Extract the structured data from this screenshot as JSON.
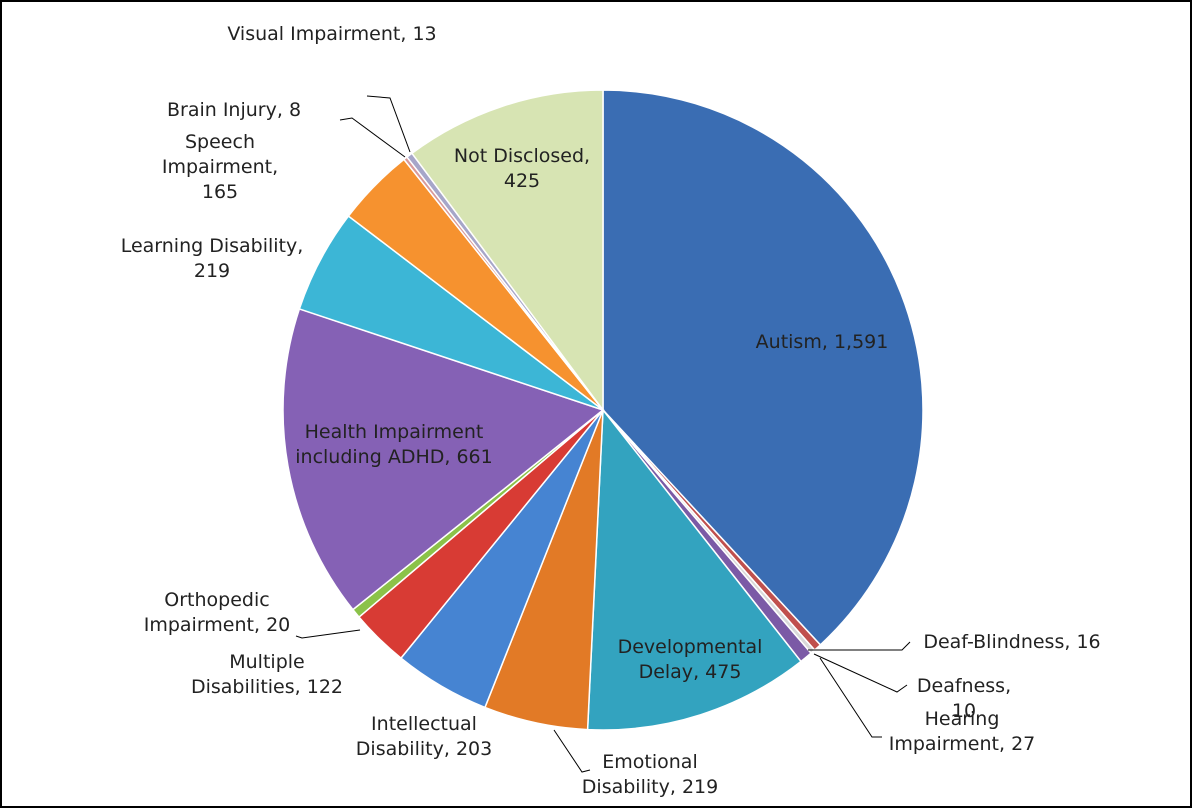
{
  "chart_data": {
    "type": "pie",
    "label_separator": ", ",
    "categories": [
      "Autism",
      "Deaf-Blindness",
      "Deafness",
      "Hearing Impairment",
      "Developmental Delay",
      "Emotional Disability",
      "Intellectual Disability",
      "Multiple Disabilities",
      "Orthopedic Impairment",
      "Health Impairment including ADHD",
      "Learning Disability",
      "Speech Impairment",
      "Brain Injury",
      "Visual Impairment",
      "Not Disclosed"
    ],
    "values": [
      1591,
      16,
      10,
      27,
      475,
      219,
      203,
      122,
      20,
      661,
      219,
      165,
      8,
      13,
      425
    ],
    "value_labels": [
      "1,591",
      "16",
      "10",
      "27",
      "475",
      "219",
      "203",
      "122",
      "20",
      "661",
      "219",
      "165",
      "8",
      "13",
      "425"
    ],
    "colors": [
      "#3a6db3",
      "#c0504d",
      "#d9d9d9",
      "#7b5aa6",
      "#33a3bf",
      "#e27a26",
      "#4684d2",
      "#d83b34",
      "#8bc249",
      "#8561b5",
      "#3cb6d6",
      "#f6922f",
      "#d99a9a",
      "#a6a6c9",
      "#d7e4b3"
    ]
  }
}
